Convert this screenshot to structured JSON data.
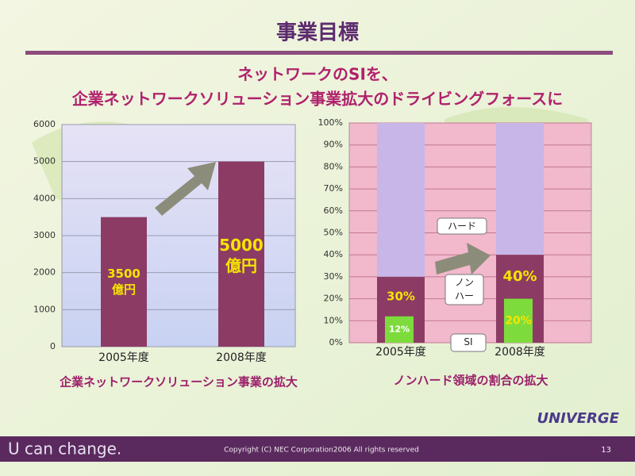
{
  "slide": {
    "title": "事業目標",
    "subtitle_lines": [
      "ネットワークのSIを、",
      "企業ネットワークソリューション事業拡大のドライビングフォースに"
    ],
    "brand": "UNIVERGE",
    "tagline": "U can change.",
    "copyright": "Copyright (C) NEC Corporation2006 All rights reserved",
    "page": "13"
  },
  "chart_data": [
    {
      "type": "bar",
      "caption": "企業ネットワークソリューション事業の拡大",
      "categories": [
        "2005年度",
        "2008年度"
      ],
      "values": [
        3500,
        5000
      ],
      "value_labels": [
        [
          "3500",
          "億円"
        ],
        [
          "5000",
          "億円"
        ]
      ],
      "color": "#8c3c64",
      "ylim": [
        0,
        6000
      ],
      "yticks": [
        0,
        1000,
        2000,
        3000,
        4000,
        5000,
        6000
      ],
      "grid": true
    },
    {
      "type": "share",
      "caption": "ノンハード領域の割合の拡大",
      "categories": [
        "2005年度",
        "2008年度"
      ],
      "series": [
        {
          "name": "SI",
          "color": "#7ddc3c",
          "values": [
            12,
            20
          ],
          "value_labels": [
            "12%",
            "20%"
          ]
        },
        {
          "name": "ノンハード",
          "color": "#8c3c64",
          "values": [
            30,
            40
          ],
          "value_labels": [
            "30%",
            "40%"
          ]
        },
        {
          "name": "ハード",
          "color": "#c9b6e8",
          "values": [
            70,
            60
          ]
        }
      ],
      "ylim": [
        0,
        100
      ],
      "yticks": [
        {
          "value": 0,
          "label": "0%"
        },
        {
          "value": 10,
          "label": "10%"
        },
        {
          "value": 20,
          "label": "20%"
        },
        {
          "value": 30,
          "label": "30%"
        },
        {
          "value": 40,
          "label": "40%"
        },
        {
          "value": 50,
          "label": "50%"
        },
        {
          "value": 60,
          "label": "60%"
        },
        {
          "value": 70,
          "label": "70%"
        },
        {
          "value": 80,
          "label": "80%"
        },
        {
          "value": 90,
          "label": "90%"
        },
        {
          "value": 100,
          "label": "100%"
        }
      ],
      "grid": true
    }
  ]
}
